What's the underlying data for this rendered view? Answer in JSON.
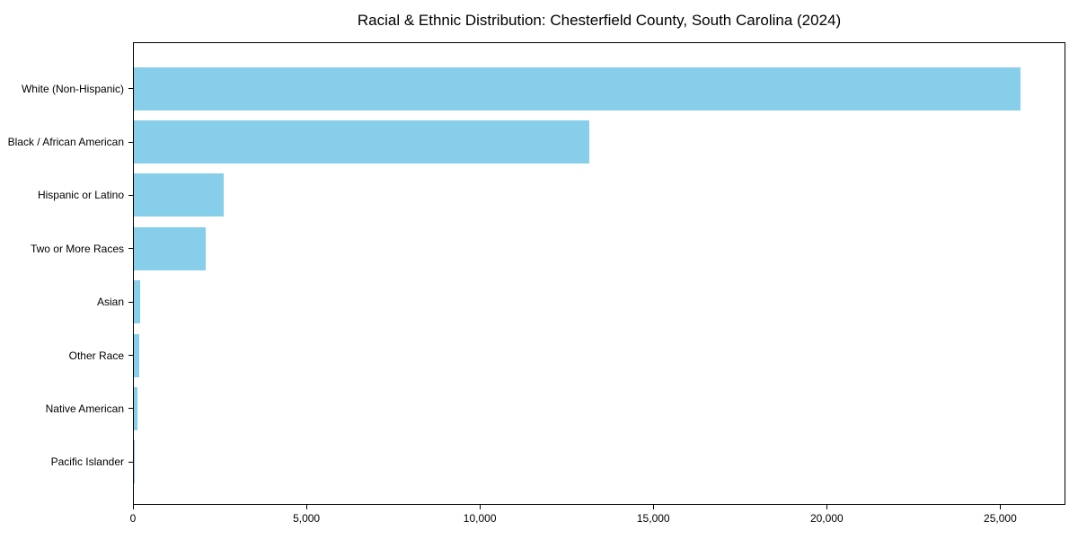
{
  "chart_data": {
    "type": "bar",
    "orientation": "horizontal",
    "title": "Racial & Ethnic Distribution: Chesterfield County, South Carolina (2024)",
    "categories": [
      "White (Non-Hispanic)",
      "Black / African American",
      "Hispanic or Latino",
      "Two or More Races",
      "Asian",
      "Other Race",
      "Native American",
      "Pacific Islander"
    ],
    "values": [
      25600,
      13150,
      2600,
      2070,
      190,
      160,
      100,
      10
    ],
    "xlabel": "",
    "ylabel": "",
    "xlim": [
      0,
      26880
    ],
    "x_ticks": [
      0,
      5000,
      10000,
      15000,
      20000,
      25000
    ],
    "x_tick_labels": [
      "0",
      "5,000",
      "10,000",
      "15,000",
      "20,000",
      "25,000"
    ],
    "bar_color": "#87CEEB",
    "frame_color": "#000000",
    "text_color": "#000000",
    "background_color": "#ffffff",
    "grid": false,
    "legend": "none"
  }
}
